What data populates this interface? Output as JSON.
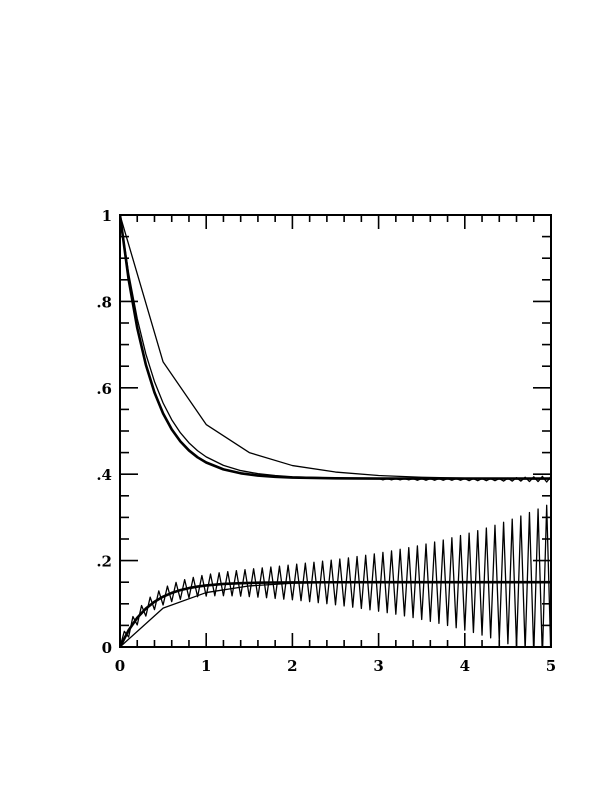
{
  "chart_data": {
    "type": "line",
    "title": "",
    "xlabel": "",
    "ylabel": "",
    "xlim": [
      0,
      5
    ],
    "ylim": [
      0,
      1
    ],
    "grid": false,
    "legend": "none",
    "x_ticks": [
      0,
      1,
      2,
      3,
      4,
      5
    ],
    "x_tick_labels": [
      "0",
      "1",
      "2",
      "3",
      "4",
      "5"
    ],
    "x_minor_step": 0.2,
    "y_ticks": [
      0,
      0.2,
      0.4,
      0.6,
      0.8,
      1
    ],
    "y_tick_labels": [
      "0",
      ".2",
      ".4",
      ".6",
      ".8",
      "1"
    ],
    "y_minor_step": 0.05,
    "line_color": "#000000",
    "series": [
      {
        "style": "thick",
        "x": [
          0,
          0.1,
          0.2,
          0.3,
          0.4,
          0.5,
          0.6,
          0.7,
          0.8,
          0.9,
          1.0,
          1.2,
          1.4,
          1.6,
          1.8,
          2.0,
          2.5,
          3,
          4,
          5
        ],
        "y": [
          1,
          0.851,
          0.7385,
          0.6534,
          0.5891,
          0.5405,
          0.5037,
          0.476,
          0.455,
          0.4391,
          0.4271,
          0.4112,
          0.4021,
          0.3969,
          0.3939,
          0.3923,
          0.3905,
          0.39,
          0.39,
          0.39
        ]
      },
      {
        "style": "thin",
        "x": [
          0,
          0.1,
          0.2,
          0.3,
          0.4,
          0.5,
          0.6,
          0.7,
          0.8,
          0.9,
          1.0,
          1.2,
          1.4,
          1.6,
          1.8,
          2.0,
          2.5,
          3,
          4,
          5
        ],
        "y": [
          1,
          0.8651,
          0.76,
          0.6782,
          0.6144,
          0.5648,
          0.5261,
          0.496,
          0.4726,
          0.4543,
          0.4401,
          0.4204,
          0.4084,
          0.4012,
          0.3968,
          0.3941,
          0.3911,
          0.39,
          0.39,
          0.39
        ]
      },
      {
        "style": "thin",
        "x": [
          0,
          0.5,
          1,
          1.5,
          2,
          2.5,
          3,
          3.5,
          4,
          4.5,
          5
        ],
        "y": [
          1,
          0.66,
          0.515,
          0.45,
          0.42,
          0.405,
          0.397,
          0.393,
          0.391,
          0.39,
          0.39
        ]
      },
      {
        "style": "thin",
        "x_start": 3.0,
        "x_step": 0.05,
        "y": [
          0.39,
          0.387,
          0.39,
          0.387,
          0.39,
          0.387,
          0.39,
          0.387,
          0.39,
          0.386,
          0.39,
          0.386,
          0.39,
          0.386,
          0.39,
          0.386,
          0.39,
          0.386,
          0.39,
          0.386,
          0.39,
          0.385,
          0.39,
          0.385,
          0.39,
          0.385,
          0.39,
          0.385,
          0.39,
          0.384,
          0.391,
          0.384,
          0.392,
          0.384,
          0.393,
          0.383,
          0.394,
          0.383,
          0.395,
          0.382,
          0.395
        ]
      },
      {
        "style": "thick",
        "x": [
          0,
          0.1,
          0.2,
          0.3,
          0.4,
          0.5,
          0.6,
          0.7,
          0.8,
          0.9,
          1.0,
          1.2,
          1.4,
          1.6,
          1.8,
          2.0,
          2.5,
          3,
          4,
          5
        ],
        "y": [
          0,
          0.0389,
          0.0677,
          0.089,
          0.1048,
          0.1165,
          0.1252,
          0.1316,
          0.1364,
          0.1399,
          0.1425,
          0.1459,
          0.1478,
          0.1488,
          0.1493,
          0.1496,
          0.1499,
          0.15,
          0.15,
          0.15
        ]
      },
      {
        "style": "thin",
        "x": [
          0,
          0.5,
          1,
          1.5,
          2,
          2.5,
          3,
          4,
          5
        ],
        "y": [
          0,
          0.09,
          0.126,
          0.1414,
          0.1476,
          0.149,
          0.1496,
          0.15,
          0.15
        ]
      },
      {
        "style": "thin",
        "x_start": 0,
        "x_step": 0.05,
        "y": [
          0,
          0.0363,
          0.0231,
          0.0705,
          0.0511,
          0.0961,
          0.0716,
          0.1153,
          0.0865,
          0.1299,
          0.0972,
          0.141,
          0.105,
          0.1495,
          0.1103,
          0.156,
          0.114,
          0.1612,
          0.1164,
          0.1654,
          0.1178,
          0.1689,
          0.1185,
          0.1718,
          0.1186,
          0.1744,
          0.1183,
          0.1768,
          0.1176,
          0.179,
          0.1165,
          0.1811,
          0.1153,
          0.1831,
          0.114,
          0.1852,
          0.1124,
          0.1872,
          0.1107,
          0.1894,
          0.1092,
          0.1918,
          0.1071,
          0.194,
          0.1049,
          0.1962,
          0.1026,
          0.1986,
          0.1002,
          0.201,
          0.0977,
          0.2036,
          0.095,
          0.2064,
          0.0922,
          0.2093,
          0.0892,
          0.2123,
          0.0861,
          0.2155,
          0.0828,
          0.2189,
          0.0794,
          0.2224,
          0.0758,
          0.2261,
          0.072,
          0.23,
          0.068,
          0.2341,
          0.0637,
          0.2384,
          0.0593,
          0.243,
          0.0547,
          0.2477,
          0.0498,
          0.2527,
          0.0447,
          0.258,
          0.0392,
          0.2636,
          0.0336,
          0.2694,
          0.0276,
          0.2755,
          0.0213,
          0.2819,
          0.0147,
          0.2887,
          0.0077,
          0.2959,
          0.0004,
          0.3033,
          -0.0072,
          0.3112,
          -0.0153,
          0.3195,
          -0.0238,
          0.3282,
          -0.0327
        ]
      }
    ]
  }
}
